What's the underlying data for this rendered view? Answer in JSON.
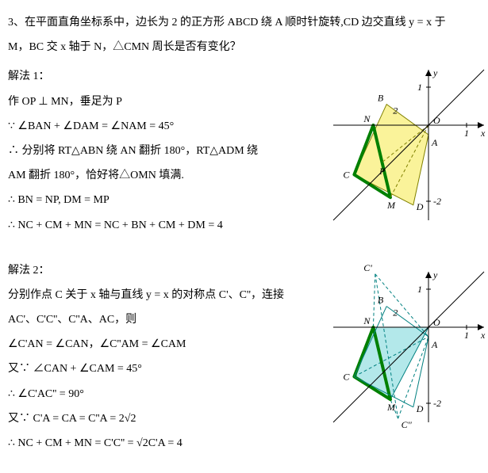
{
  "problem": {
    "line1": "3、在平面直角坐标系中，边长为 2 的正方形 ABCD 绕 A 顺时针旋转,CD 边交直线 y = x 于",
    "line2": "M，BC 交 x 轴于 N，△CMN 周长是否有变化？"
  },
  "sol1": {
    "title": "解法 1：",
    "l1": "作 OP ⊥ MN，垂足为 P",
    "l2": "∵ ∠BAN + ∠DAM = ∠NAM = 45°",
    "l3": "∴ 分别将 RT△ABN 绕 AN 翻折 180°，RT△ADM 绕",
    "l4": "AM 翻折 180°，恰好将△OMN 填满.",
    "l5": "∴ BN = NP, DM = MP",
    "l6": "∴ NC + CM + MN = NC + BN + CM + DM = 4"
  },
  "sol2": {
    "title": "解法 2：",
    "l1": "分别作点 C 关于 x 轴与直线 y = x 的对称点 C'、C''，连接",
    "l2": "AC'、C'C''、C''A、AC，则",
    "l3": "∠C'AN = ∠CAN，∠C''AM = ∠CAM",
    "l4": "又∵ ∠CAN + ∠CAM = 45°",
    "l5": "∴ ∠C'AC'' = 90°",
    "l6": "又∵ C'A = CA = C''A = 2√2",
    "l7": "∴ NC + CM + MN = C'C'' = √2C'A = 4"
  },
  "fig": {
    "axis_color": "#000000",
    "yx_line_color": "#000000",
    "square_fill": "#faf39a",
    "square_stroke": "#808000",
    "tri_fill2": "#b3e8ea",
    "tri_stroke2": "#008080",
    "cmn_stroke": "#008000",
    "cmn_width": 4,
    "dash_color": "#808000",
    "dash_color2": "#008080",
    "labels": {
      "y": "y",
      "x": "x",
      "O": "O",
      "A": "A",
      "B": "B",
      "C": "C",
      "D": "D",
      "M": "M",
      "N": "N",
      "P": "P",
      "one": "1",
      "neg2": "-2",
      "two": "2",
      "Cp": "C'",
      "Cpp": "C''"
    },
    "axis_ticks": {
      "x1": 1,
      "yneg2": -2,
      "y1": 1
    },
    "scale": 48,
    "points1": {
      "O": [
        0,
        0
      ],
      "A": [
        0,
        -0.25
      ],
      "B": [
        -1.1,
        0.55
      ],
      "N": [
        -1.45,
        0
      ],
      "C": [
        -1.95,
        -1.3
      ],
      "M": [
        -1.0,
        -1.9
      ],
      "D": [
        -0.4,
        -2.1
      ],
      "P": [
        -1.25,
        -1.0
      ]
    },
    "points2": {
      "O": [
        0,
        0
      ],
      "A": [
        0,
        -0.25
      ],
      "B": [
        -1.1,
        0.55
      ],
      "N": [
        -1.45,
        0
      ],
      "C": [
        -1.95,
        -1.3
      ],
      "M": [
        -1.0,
        -1.9
      ],
      "D": [
        -0.4,
        -2.1
      ],
      "Cp": [
        -1.4,
        1.4
      ],
      "Cpp": [
        -0.8,
        -2.4
      ]
    }
  }
}
